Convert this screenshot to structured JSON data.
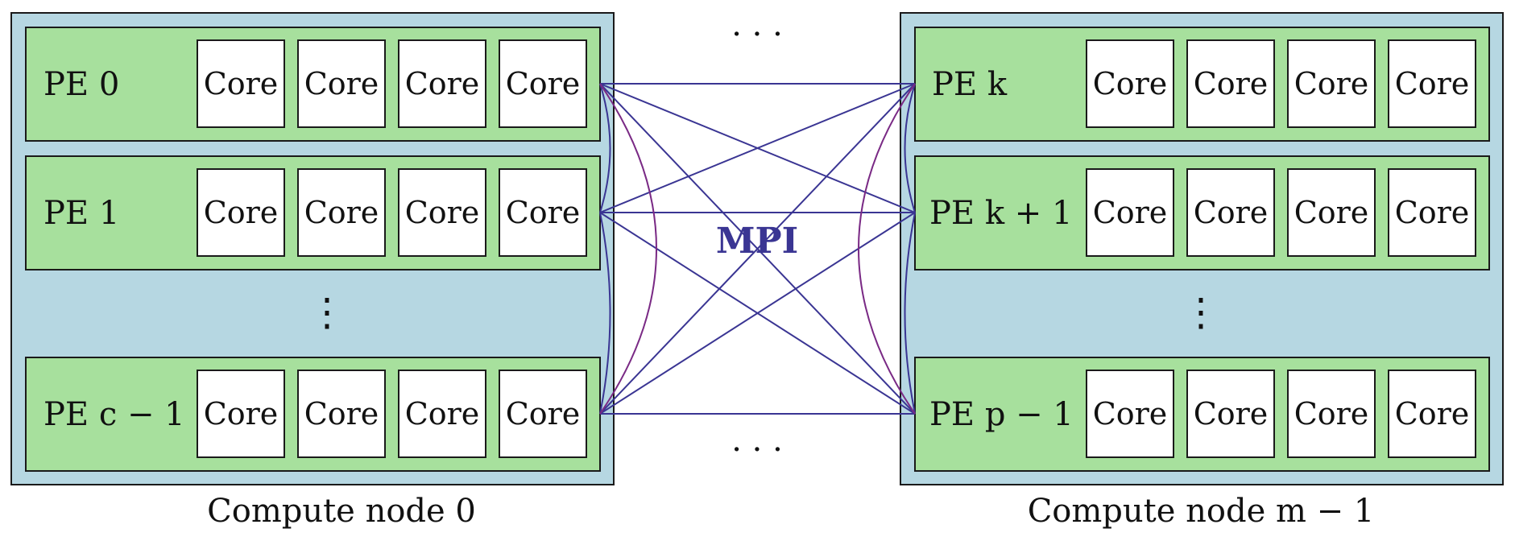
{
  "colors": {
    "node_fill": "#b6d7e2",
    "pe_fill": "#a7e09d",
    "core_fill": "#ffffff",
    "border": "#1a1a1a",
    "link_blue": "#3a3593",
    "link_purple": "#7a2a85",
    "mpi_text": "#3a3593"
  },
  "mpi_label": "MPI",
  "core_label": "Core",
  "vdots": "⋮",
  "hdots": "· · ·",
  "nodes": [
    {
      "caption": "Compute node 0",
      "pes": [
        {
          "label": "PE 0"
        },
        {
          "label": "PE 1"
        },
        {
          "label": "PE c − 1"
        }
      ]
    },
    {
      "caption": "Compute node m − 1",
      "pes": [
        {
          "label": "PE k"
        },
        {
          "label": "PE k + 1"
        },
        {
          "label": "PE p − 1"
        }
      ]
    }
  ]
}
